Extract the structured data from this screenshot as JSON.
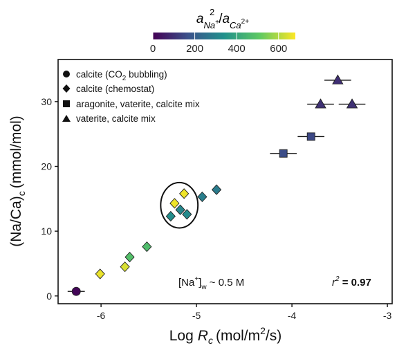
{
  "chart_data": {
    "type": "scatter",
    "xlabel_main": "Log",
    "xlabel_var": "R",
    "xlabel_sub": "c",
    "xlabel_units_pre": "(mol/m",
    "xlabel_units_sup": "2",
    "xlabel_units_post": "/s)",
    "ylabel_main": "(Na/Ca)",
    "ylabel_sub": "c",
    "ylabel_units": "(mmol/mol)",
    "xlim": [
      -6.45,
      -2.95
    ],
    "ylim": [
      -1.2,
      36.5
    ],
    "x_ticks": [
      -6,
      -5,
      -4,
      -3
    ],
    "x_tick_labels": [
      "-6",
      "-5",
      "-4",
      "-3"
    ],
    "y_ticks": [
      0,
      10,
      20,
      30
    ],
    "y_tick_labels": [
      "0",
      "10",
      "20",
      "30"
    ],
    "grid": false,
    "legend_position": "top-left",
    "colorbar": {
      "title_a1": "a",
      "title_sub1": "Na",
      "title_sup1": "+",
      "title_sup2": "2",
      "title_slash": "/",
      "title_a2": "a",
      "title_sub2": "Ca",
      "title_sup3": "2+",
      "min": 0,
      "max": 680,
      "ticks": [
        0,
        200,
        400,
        600
      ],
      "tick_labels": [
        "0",
        "200",
        "400",
        "600"
      ],
      "colors": [
        "#440154",
        "#3b528b",
        "#21918c",
        "#5ec962",
        "#fde725"
      ]
    },
    "legend": [
      {
        "marker": "circle",
        "label_pre": "calcite (CO",
        "label_sub": "2",
        "label_post": " bubbling)"
      },
      {
        "marker": "diamond",
        "label_pre": "calcite (chemostat)",
        "label_sub": "",
        "label_post": ""
      },
      {
        "marker": "square",
        "label_pre": "aragonite, vaterite, calcite mix",
        "label_sub": "",
        "label_post": ""
      },
      {
        "marker": "triangle",
        "label_pre": "vaterite, calcite mix",
        "label_sub": "",
        "label_post": ""
      }
    ],
    "series": [
      {
        "marker": "circle",
        "points": [
          {
            "x": -6.26,
            "y": 0.7,
            "c": 10,
            "xerr": 0.09
          }
        ]
      },
      {
        "marker": "diamond",
        "points": [
          {
            "x": -6.01,
            "y": 3.4,
            "c": 660
          },
          {
            "x": -5.75,
            "y": 4.5,
            "c": 640
          },
          {
            "x": -5.7,
            "y": 6.0,
            "c": 480
          },
          {
            "x": -5.52,
            "y": 7.6,
            "c": 470
          },
          {
            "x": -5.27,
            "y": 12.3,
            "c": 330
          },
          {
            "x": -5.23,
            "y": 14.3,
            "c": 665
          },
          {
            "x": -5.17,
            "y": 13.3,
            "c": 310
          },
          {
            "x": -5.13,
            "y": 15.8,
            "c": 665
          },
          {
            "x": -5.1,
            "y": 12.6,
            "c": 320
          },
          {
            "x": -4.94,
            "y": 15.3,
            "c": 290
          },
          {
            "x": -4.79,
            "y": 16.4,
            "c": 280
          }
        ]
      },
      {
        "marker": "square",
        "points": [
          {
            "x": -4.09,
            "y": 22.0,
            "c": 160,
            "xerr": 0.14
          },
          {
            "x": -3.8,
            "y": 24.6,
            "c": 150,
            "xerr": 0.14
          }
        ]
      },
      {
        "marker": "triangle",
        "points": [
          {
            "x": -3.7,
            "y": 29.6,
            "c": 100,
            "xerr": 0.14
          },
          {
            "x": -3.52,
            "y": 33.3,
            "c": 95,
            "xerr": 0.14
          },
          {
            "x": -3.37,
            "y": 29.6,
            "c": 100,
            "xerr": 0.14
          }
        ]
      }
    ],
    "ellipse": {
      "cx": -5.18,
      "cy": 14.0,
      "rx": 0.195,
      "ry": 3.5
    },
    "annotation_na_pre": "[Na",
    "annotation_na_sup": "+",
    "annotation_na_mid": "]",
    "annotation_na_sub": "w",
    "annotation_na_post": " ~ 0.5 M",
    "r2_label": "r",
    "r2_sup": "2",
    "r2_value": " = 0.97"
  }
}
